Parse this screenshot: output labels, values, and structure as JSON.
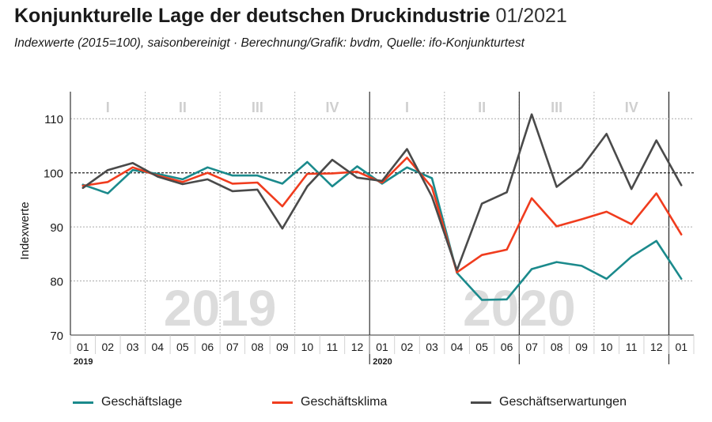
{
  "header": {
    "title": "Konjunkturelle Lage der deutschen Druckindustrie",
    "title_period": "01/2021",
    "subtitle": "Indexwerte (2015=100), saisonbereinigt · Berechnung/Grafik: bvdm, Quelle: ifo-Konjunkturtest"
  },
  "chart_data": {
    "type": "line",
    "ylabel": "Indexwerte",
    "ylim": [
      70,
      115
    ],
    "yticks": [
      70,
      80,
      90,
      100,
      110
    ],
    "x_labels": [
      "01",
      "02",
      "03",
      "04",
      "05",
      "06",
      "07",
      "08",
      "09",
      "10",
      "11",
      "12",
      "01",
      "02",
      "03",
      "04",
      "05",
      "06",
      "07",
      "08",
      "09",
      "10",
      "11",
      "12",
      "01"
    ],
    "year_labels": [
      {
        "text": "2019",
        "index": 0
      },
      {
        "text": "2020",
        "index": 12
      }
    ],
    "watermarks": [
      {
        "text": "2019",
        "center_index": 5.5
      },
      {
        "text": "2020",
        "center_index": 17.5
      }
    ],
    "quarters": [
      {
        "label": "I",
        "center_index": 1
      },
      {
        "label": "II",
        "center_index": 4
      },
      {
        "label": "III",
        "center_index": 7
      },
      {
        "label": "IV",
        "center_index": 10
      },
      {
        "label": "I",
        "center_index": 13
      },
      {
        "label": "II",
        "center_index": 16
      },
      {
        "label": "III",
        "center_index": 19
      },
      {
        "label": "IV",
        "center_index": 22
      }
    ],
    "reference_line": 100,
    "series": [
      {
        "name": "Geschäftslage",
        "color": "#1b8a8c",
        "values": [
          97.8,
          96.2,
          100.5,
          99.8,
          98.8,
          101.0,
          99.5,
          99.5,
          98.0,
          102.0,
          97.5,
          101.2,
          98.0,
          101.0,
          99.0,
          81.5,
          76.5,
          76.6,
          82.2,
          83.5,
          82.8,
          80.4,
          84.5,
          87.4,
          80.4
        ]
      },
      {
        "name": "Geschäftsklima",
        "color": "#f03c1e",
        "values": [
          97.6,
          98.3,
          101.0,
          99.5,
          98.3,
          100.0,
          98.0,
          98.2,
          93.8,
          99.8,
          99.9,
          100.2,
          98.2,
          102.8,
          97.3,
          81.6,
          84.8,
          85.8,
          95.3,
          90.1,
          91.4,
          92.8,
          90.5,
          96.2,
          88.6
        ]
      },
      {
        "name": "Geschäftserwartungen",
        "color": "#4a4a4a",
        "values": [
          97.2,
          100.5,
          101.8,
          99.3,
          97.9,
          98.8,
          96.6,
          96.9,
          89.7,
          97.5,
          102.4,
          99.1,
          98.5,
          104.4,
          95.6,
          82.0,
          94.3,
          96.4,
          110.8,
          97.4,
          101.0,
          107.2,
          97.0,
          106.0,
          97.7
        ]
      }
    ]
  }
}
